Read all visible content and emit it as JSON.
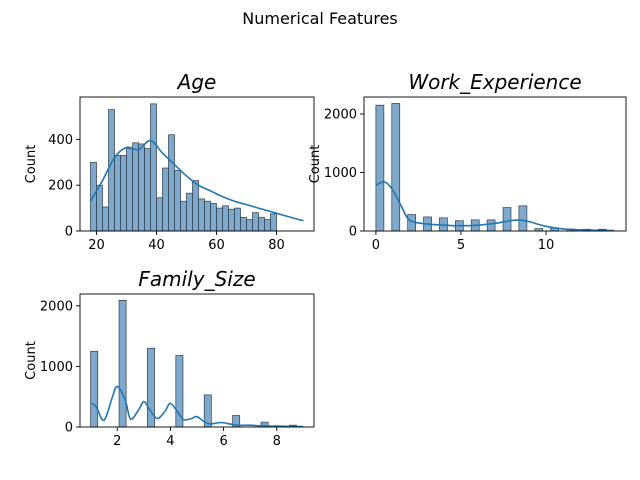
{
  "figure": {
    "suptitle": "Numerical Features"
  },
  "colors": {
    "bar_fill": "#7fa9cc",
    "bar_edge": "#2e3b46",
    "kde": "#1f77b4"
  },
  "chart_data": [
    {
      "type": "bar",
      "title": "Age",
      "xlabel": "",
      "ylabel": "Count",
      "bin_start": 18,
      "bin_width": 2.0,
      "values": [
        300,
        200,
        105,
        530,
        330,
        330,
        360,
        385,
        380,
        360,
        555,
        145,
        275,
        420,
        265,
        130,
        165,
        220,
        140,
        130,
        120,
        100,
        110,
        95,
        100,
        60,
        50,
        80,
        60,
        50,
        75
      ],
      "kde": {
        "x": [
          18,
          22,
          26,
          30,
          34,
          38,
          42,
          46,
          50,
          54,
          58,
          62,
          66,
          70,
          74,
          78,
          82,
          86,
          89
        ],
        "y": [
          130,
          220,
          320,
          365,
          355,
          395,
          340,
          290,
          240,
          200,
          175,
          150,
          130,
          115,
          100,
          85,
          70,
          55,
          45
        ]
      },
      "xticks": [
        20,
        40,
        60,
        80
      ],
      "yticks": [
        0,
        200,
        400
      ],
      "xlim": [
        14.5,
        92.5
      ],
      "ylim": [
        0,
        585
      ],
      "grid": false
    },
    {
      "type": "bar",
      "title": "Work_Experience",
      "xlabel": "",
      "ylabel": "Count",
      "bin_start": 0,
      "bin_width": 0.467,
      "values": [
        2150,
        0,
        2180,
        0,
        280,
        0,
        240,
        0,
        225,
        0,
        175,
        0,
        190,
        0,
        190,
        0,
        400,
        0,
        430,
        0,
        40,
        0,
        50,
        0,
        35,
        0,
        30,
        0,
        30
      ],
      "kde": {
        "x": [
          0,
          0.5,
          1,
          1.5,
          2,
          3,
          4,
          5,
          6,
          7,
          8,
          8.5,
          9,
          10,
          11,
          12,
          13,
          14
        ],
        "y": [
          780,
          840,
          700,
          420,
          180,
          120,
          100,
          90,
          100,
          130,
          180,
          185,
          160,
          80,
          35,
          20,
          12,
          8
        ]
      },
      "xticks": [
        0,
        5,
        10
      ],
      "yticks": [
        0,
        1000,
        2000
      ],
      "xlim": [
        -0.7,
        14.7
      ],
      "ylim": [
        0,
        2290
      ],
      "grid": false
    },
    {
      "type": "bar",
      "title": "Family_Size",
      "xlabel": "",
      "ylabel": "Count",
      "bin_start": 1,
      "bin_width": 0.267,
      "values": [
        1250,
        0,
        0,
        0,
        2090,
        0,
        0,
        0,
        1300,
        0,
        0,
        0,
        1180,
        0,
        0,
        0,
        530,
        0,
        0,
        0,
        190,
        0,
        0,
        0,
        80,
        0,
        0,
        0,
        30,
        0
      ],
      "kde": {
        "x": [
          1,
          1.2,
          1.5,
          1.8,
          2,
          2.3,
          2.5,
          2.8,
          3,
          3.2,
          3.5,
          3.8,
          4,
          4.3,
          4.5,
          4.8,
          5,
          5.3,
          5.5,
          5.8,
          6,
          6.5,
          7,
          7.5,
          8,
          8.5,
          9
        ],
        "y": [
          400,
          340,
          110,
          470,
          670,
          450,
          130,
          280,
          420,
          300,
          140,
          260,
          390,
          230,
          120,
          140,
          170,
          80,
          50,
          70,
          70,
          30,
          30,
          15,
          15,
          10,
          5
        ]
      },
      "xticks": [
        2,
        4,
        6,
        8
      ],
      "yticks": [
        0,
        1000,
        2000
      ],
      "xlim": [
        0.6,
        9.4
      ],
      "ylim": [
        0,
        2195
      ],
      "grid": false
    }
  ]
}
